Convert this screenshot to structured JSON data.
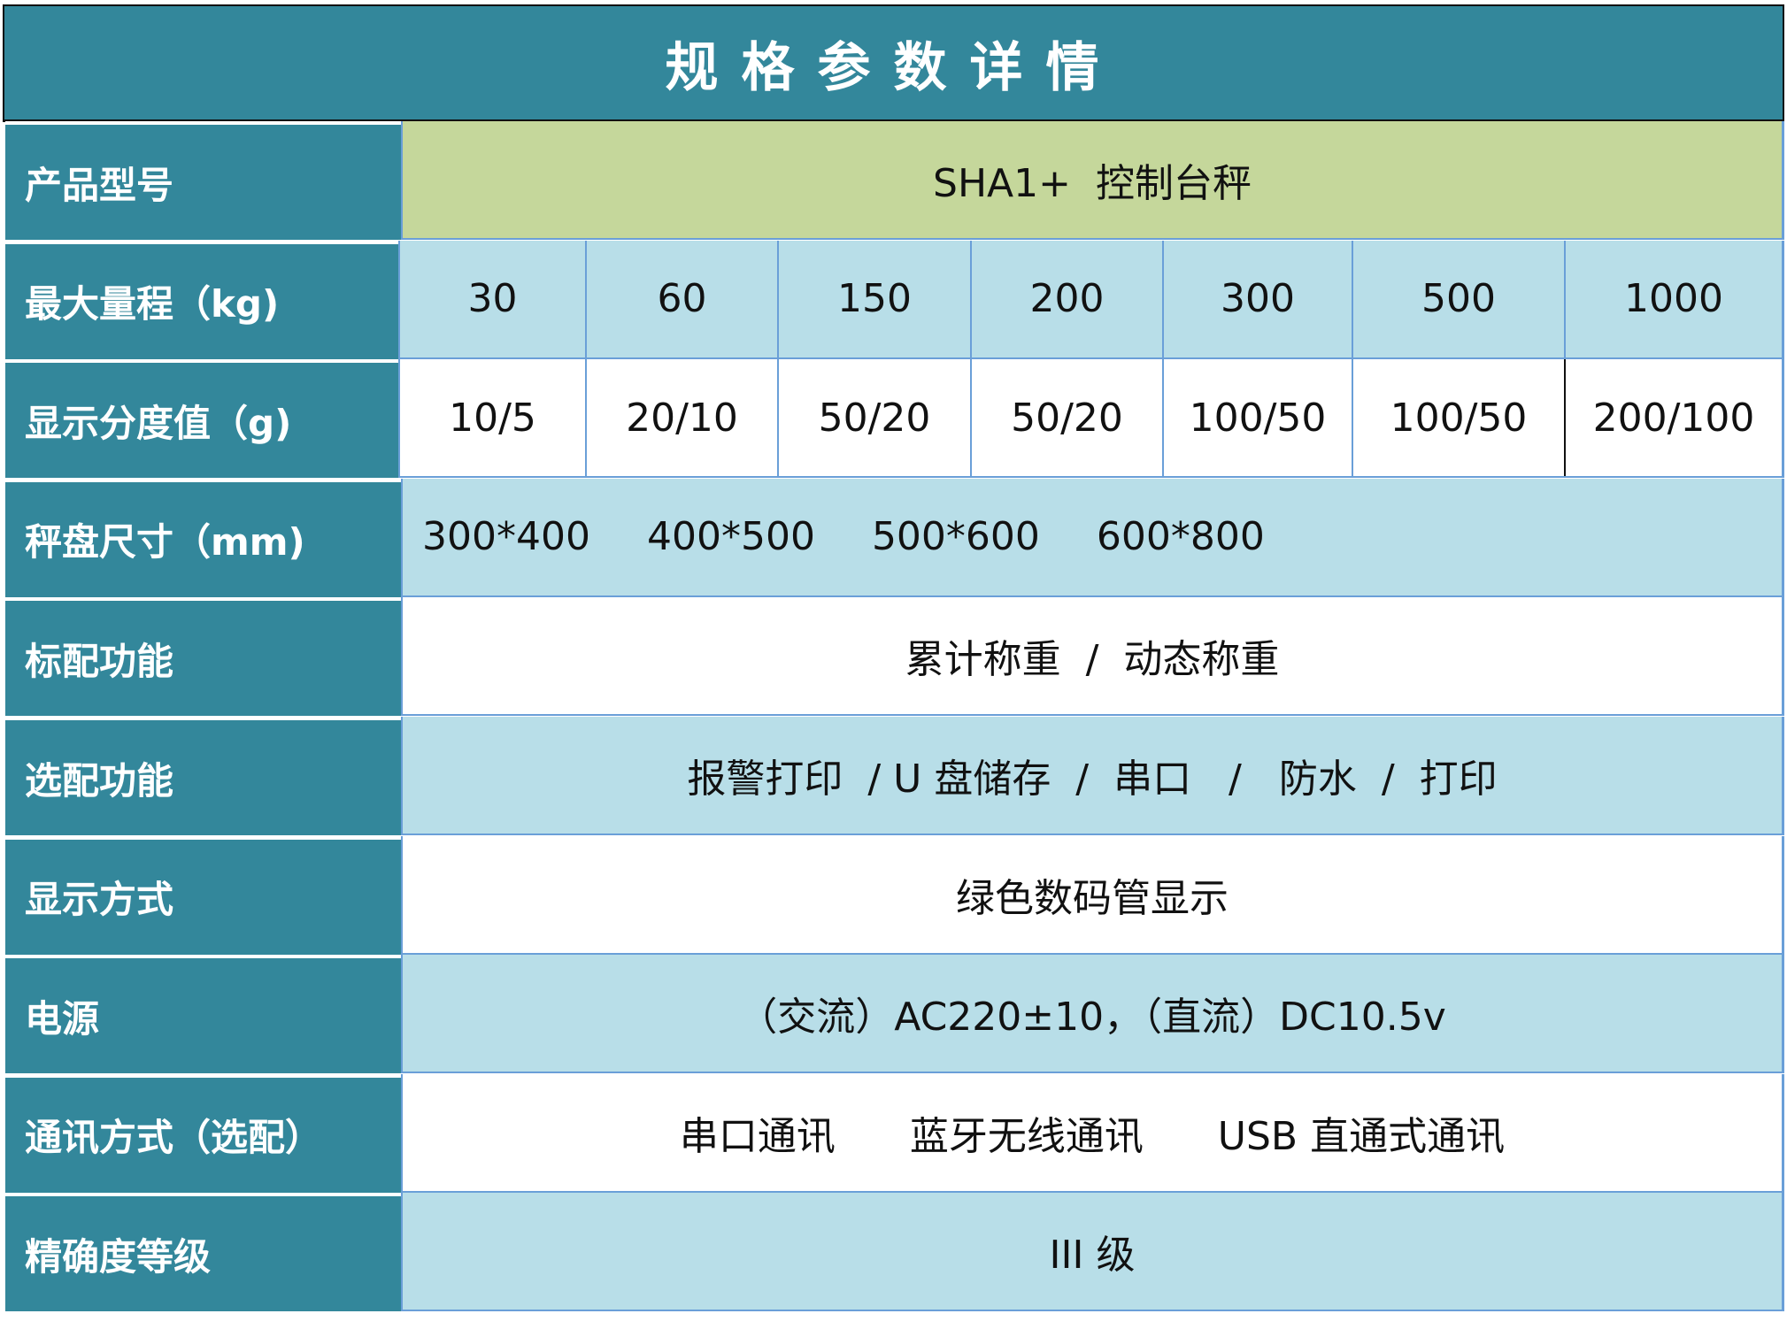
{
  "title": "规格参数详情",
  "colors": {
    "header": "#33879b",
    "model_row": "#c5d79b",
    "light_row": "#b8dee8",
    "border": "#6a9fd8"
  },
  "rows": [
    {
      "label": "产品型号",
      "value": "SHA1+  控制台秤"
    },
    {
      "label": "最大量程（kg)",
      "values": [
        "30",
        "60",
        "150",
        "200",
        "300",
        "500",
        "1000"
      ]
    },
    {
      "label": "显示分度值（g)",
      "values": [
        "10/5",
        "20/10",
        "50/20",
        "50/20",
        "100/50",
        "100/50",
        "200/100"
      ]
    },
    {
      "label": "秤盘尺寸（mm)",
      "values": [
        "300*400",
        "400*500",
        "500*600",
        "600*800"
      ]
    },
    {
      "label": "标配功能",
      "value": "累计称重  /  动态称重"
    },
    {
      "label": "选配功能",
      "value": "报警打印  / U 盘储存  /  串口   /   防水  /  打印"
    },
    {
      "label": "显示方式",
      "value": "绿色数码管显示"
    },
    {
      "label": "电源",
      "value": "（交流）AC220±10，（直流）DC10.5v"
    },
    {
      "label": "通讯方式（选配）",
      "value": "串口通讯      蓝牙无线通讯      USB 直通式通讯"
    },
    {
      "label": "精确度等级",
      "value": "III 级"
    }
  ]
}
